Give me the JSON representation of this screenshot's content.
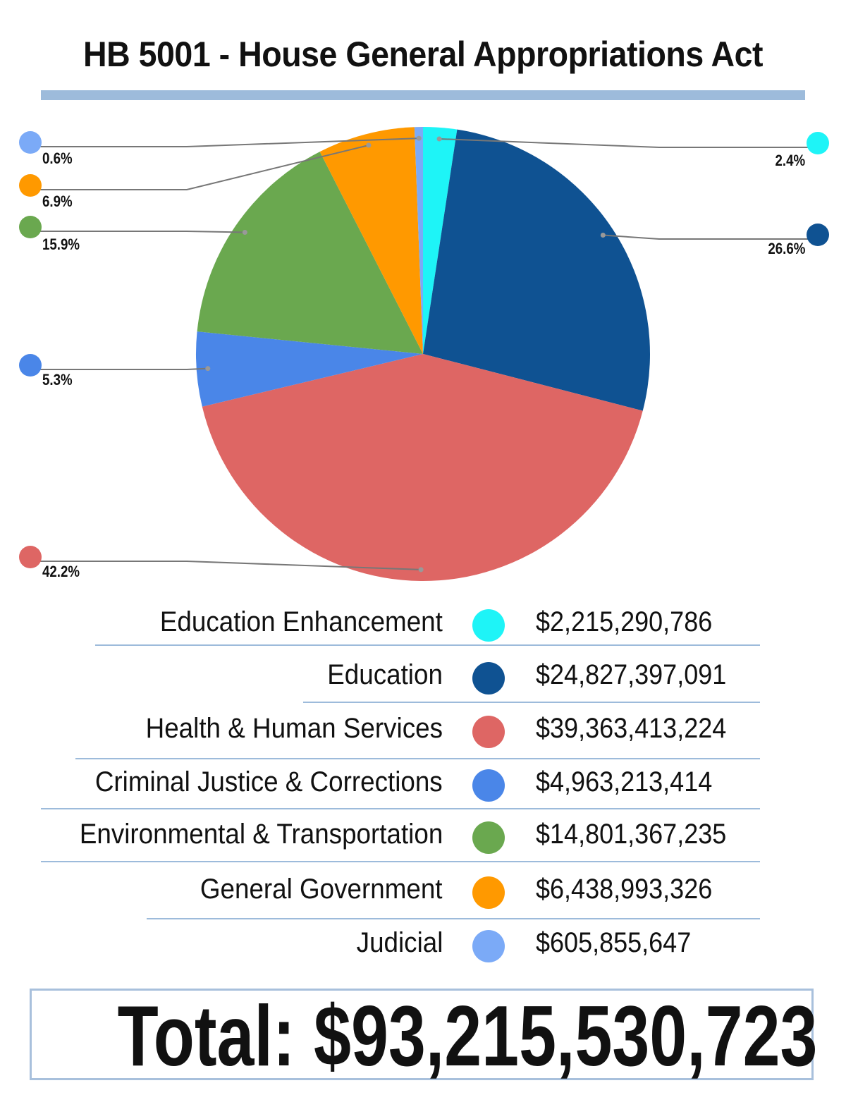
{
  "title": "HB 5001 - House General Appropriations Act",
  "chart_data": {
    "type": "pie",
    "title": "HB 5001 - House General Appropriations Act",
    "start": "top, clockwise",
    "slices": [
      {
        "name": "Education Enhancement",
        "amount": 2215290786,
        "percent": 2.4,
        "percent_label": "2.4%",
        "amount_label": "$2,215,290,786",
        "color": "#1ef4f7"
      },
      {
        "name": "Education",
        "amount": 24827397091,
        "percent": 26.6,
        "percent_label": "26.6%",
        "amount_label": "$24,827,397,091",
        "color": "#0f5292"
      },
      {
        "name": "Health & Human Services",
        "amount": 39363413224,
        "percent": 42.2,
        "percent_label": "42.2%",
        "amount_label": "$39,363,413,224",
        "color": "#de6664"
      },
      {
        "name": "Criminal Justice & Corrections",
        "amount": 4963213414,
        "percent": 5.3,
        "percent_label": "5.3%",
        "amount_label": "$4,963,213,414",
        "color": "#4a86e8"
      },
      {
        "name": "Environmental & Transportation",
        "amount": 14801367235,
        "percent": 15.9,
        "percent_label": "15.9%",
        "amount_label": "$14,801,367,235",
        "color": "#6aa84f"
      },
      {
        "name": "General Government",
        "amount": 6438993326,
        "percent": 6.9,
        "percent_label": "6.9%",
        "amount_label": "$6,438,993,326",
        "color": "#ff9900"
      },
      {
        "name": "Judicial",
        "amount": 605855647,
        "percent": 0.6,
        "percent_label": "0.6%",
        "amount_label": "$605,855,647",
        "color": "#7baaf7"
      }
    ],
    "legend_order": [
      0,
      1,
      2,
      3,
      4,
      5,
      6
    ]
  },
  "total_label": "Total: $93,215,530,723"
}
